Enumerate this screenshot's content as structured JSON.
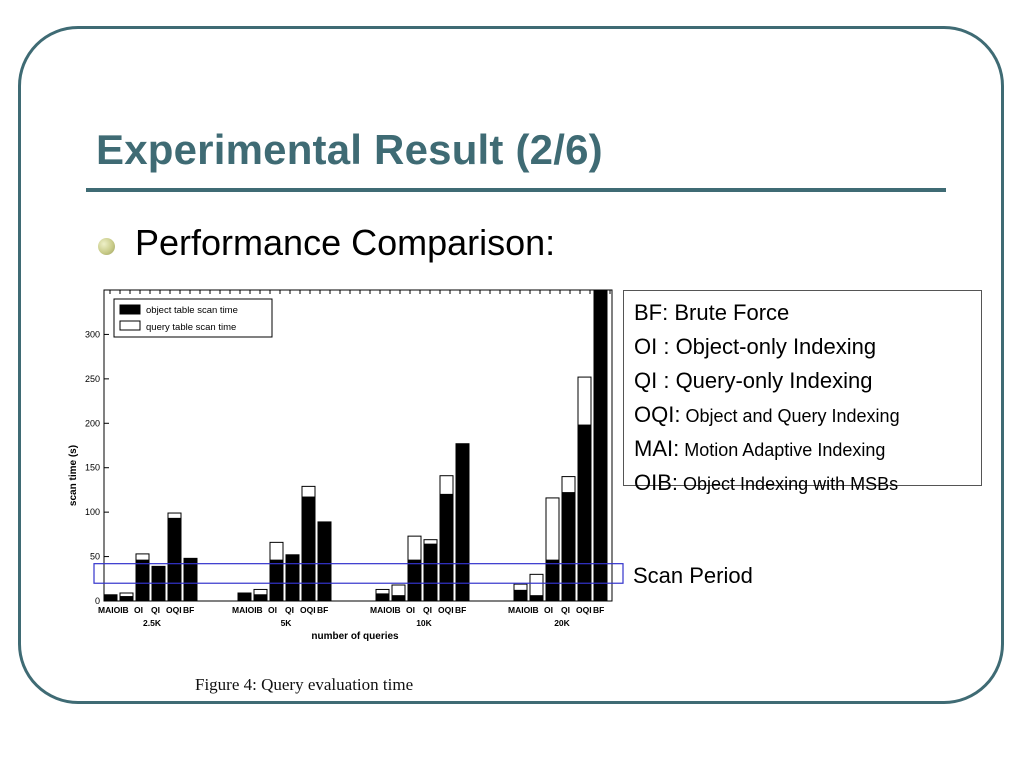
{
  "slide": {
    "title": "Experimental Result (2/6)",
    "bullet": "Performance Comparison:",
    "scan_period_label": "Scan Period",
    "caption": "Figure 4:  Query evaluation time",
    "theme_color": "#3f6b74",
    "highlight_color": "#3333cc"
  },
  "definitions": [
    {
      "abbr": "BF:",
      "text": "Brute Force",
      "small": false
    },
    {
      "abbr": "OI :",
      "text": "Object-only Indexing",
      "small": false
    },
    {
      "abbr": "QI :",
      "text": "Query-only Indexing",
      "small": false
    },
    {
      "abbr": "OQI:",
      "text": "Object and Query Indexing",
      "small": true
    },
    {
      "abbr": "MAI:",
      "text": "Motion Adaptive Indexing",
      "small": true
    },
    {
      "abbr": "OIB:",
      "text": "Object Indexing with MSBs",
      "small": true
    }
  ],
  "chart_data": {
    "type": "bar",
    "stacked": true,
    "ylabel": "scan time (s)",
    "xlabel": "number of queries",
    "ylim": [
      0,
      350
    ],
    "yticks": [
      0,
      50,
      100,
      150,
      200,
      250,
      300
    ],
    "legend": [
      "object table scan time",
      "query table scan time"
    ],
    "legend_position": "top-left",
    "series_colors": [
      "#000000",
      "#ffffff"
    ],
    "groups": [
      {
        "label": "2.5K",
        "methods": [
          "MAI",
          "OIB",
          "OI",
          "QI",
          "OQI",
          "BF"
        ],
        "object": [
          7,
          5,
          46,
          39,
          93,
          48
        ],
        "query": [
          0,
          4,
          7,
          0,
          6,
          0
        ]
      },
      {
        "label": "5K",
        "methods": [
          "MAI",
          "OIB",
          "OI",
          "QI",
          "OQI",
          "BF"
        ],
        "object": [
          9,
          7,
          46,
          52,
          117,
          89
        ],
        "query": [
          0,
          6,
          20,
          0,
          12,
          0
        ]
      },
      {
        "label": "10K",
        "methods": [
          "MAI",
          "OIB",
          "OI",
          "QI",
          "OQI",
          "BF"
        ],
        "object": [
          8,
          6,
          46,
          64,
          120,
          177
        ],
        "query": [
          5,
          12,
          27,
          5,
          21,
          0
        ]
      },
      {
        "label": "20K",
        "methods": [
          "MAI",
          "OIB",
          "OI",
          "QI",
          "OQI",
          "BF"
        ],
        "object": [
          12,
          6,
          46,
          122,
          198,
          350
        ],
        "query": [
          7,
          24,
          70,
          18,
          54,
          0
        ]
      }
    ],
    "scan_period_range": [
      20,
      42
    ]
  }
}
